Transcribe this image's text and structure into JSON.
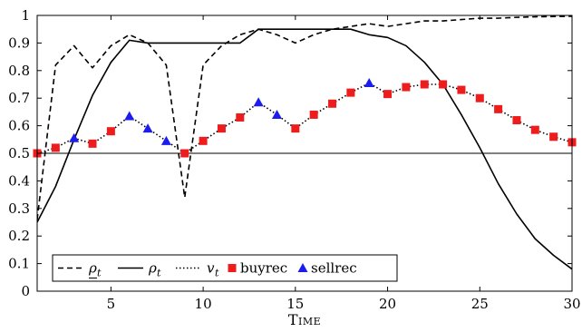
{
  "chart_data": {
    "type": "line",
    "title": "",
    "xlabel": "Time",
    "ylabel": "",
    "xlim": [
      1,
      30
    ],
    "ylim": [
      0,
      1
    ],
    "xticks": [
      5,
      10,
      15,
      20,
      25,
      30
    ],
    "yticks": [
      0,
      0.1,
      0.2,
      0.3,
      0.4,
      0.5,
      0.6,
      0.7,
      0.8,
      0.9,
      1
    ],
    "grid": false,
    "legend_position": "bottom-left",
    "reference_line": {
      "y": 0.5
    },
    "series": [
      {
        "name": "ρ_t (lower)",
        "legend_label": "ρ",
        "legend_sub": "t",
        "style": "dashed",
        "color": "#000000",
        "x": [
          1,
          2,
          3,
          4,
          5,
          6,
          7,
          8,
          9,
          10,
          11,
          12,
          13,
          14,
          15,
          16,
          17,
          18,
          19,
          20,
          21,
          22,
          23,
          24,
          25,
          26,
          27,
          28,
          29,
          30
        ],
        "y": [
          0.26,
          0.82,
          0.89,
          0.81,
          0.89,
          0.93,
          0.9,
          0.82,
          0.34,
          0.82,
          0.89,
          0.93,
          0.95,
          0.93,
          0.9,
          0.93,
          0.95,
          0.96,
          0.97,
          0.96,
          0.97,
          0.98,
          0.98,
          0.985,
          0.99,
          0.99,
          0.993,
          0.995,
          0.996,
          0.997
        ]
      },
      {
        "name": "ρ_t (upper)",
        "legend_label": "ρ",
        "legend_sub": "t",
        "style": "solid",
        "color": "#000000",
        "x": [
          1,
          2,
          3,
          4,
          5,
          6,
          7,
          8,
          9,
          10,
          11,
          12,
          13,
          14,
          15,
          16,
          17,
          18,
          19,
          20,
          21,
          22,
          23,
          24,
          25,
          26,
          27,
          28,
          29,
          30
        ],
        "y": [
          0.25,
          0.38,
          0.55,
          0.71,
          0.83,
          0.91,
          0.9,
          0.9,
          0.9,
          0.9,
          0.9,
          0.9,
          0.95,
          0.95,
          0.95,
          0.95,
          0.95,
          0.95,
          0.93,
          0.92,
          0.89,
          0.83,
          0.75,
          0.64,
          0.52,
          0.39,
          0.28,
          0.19,
          0.13,
          0.08
        ]
      },
      {
        "name": "v_t",
        "legend_label": "v",
        "legend_sub": "t",
        "style": "dotted",
        "color": "#000000",
        "x": [
          1,
          2,
          3,
          4,
          5,
          6,
          7,
          8,
          9,
          10,
          11,
          12,
          13,
          14,
          15,
          16,
          17,
          18,
          19,
          20,
          21,
          22,
          23,
          24,
          25,
          26,
          27,
          28,
          29,
          30
        ],
        "y": [
          0.5,
          0.52,
          0.555,
          0.535,
          0.58,
          0.635,
          0.59,
          0.545,
          0.5,
          0.545,
          0.59,
          0.63,
          0.685,
          0.64,
          0.59,
          0.64,
          0.68,
          0.72,
          0.755,
          0.715,
          0.74,
          0.75,
          0.75,
          0.73,
          0.7,
          0.66,
          0.62,
          0.585,
          0.56,
          0.54
        ]
      }
    ],
    "markers": [
      {
        "name": "buyrec",
        "shape": "square",
        "color": "#ee1c1c",
        "x": [
          1,
          2,
          4,
          5,
          9,
          10,
          11,
          12,
          15,
          16,
          17,
          18,
          20,
          21,
          22,
          23,
          24,
          25,
          26,
          27,
          28,
          29,
          30
        ],
        "y": [
          0.5,
          0.52,
          0.535,
          0.58,
          0.5,
          0.545,
          0.59,
          0.63,
          0.59,
          0.64,
          0.68,
          0.72,
          0.715,
          0.74,
          0.75,
          0.75,
          0.73,
          0.7,
          0.66,
          0.62,
          0.585,
          0.56,
          0.54
        ]
      },
      {
        "name": "sellrec",
        "shape": "triangle",
        "color": "#1c1cee",
        "x": [
          3,
          6,
          7,
          8,
          13,
          14,
          19
        ],
        "y": [
          0.555,
          0.635,
          0.59,
          0.545,
          0.685,
          0.64,
          0.755
        ]
      }
    ]
  }
}
